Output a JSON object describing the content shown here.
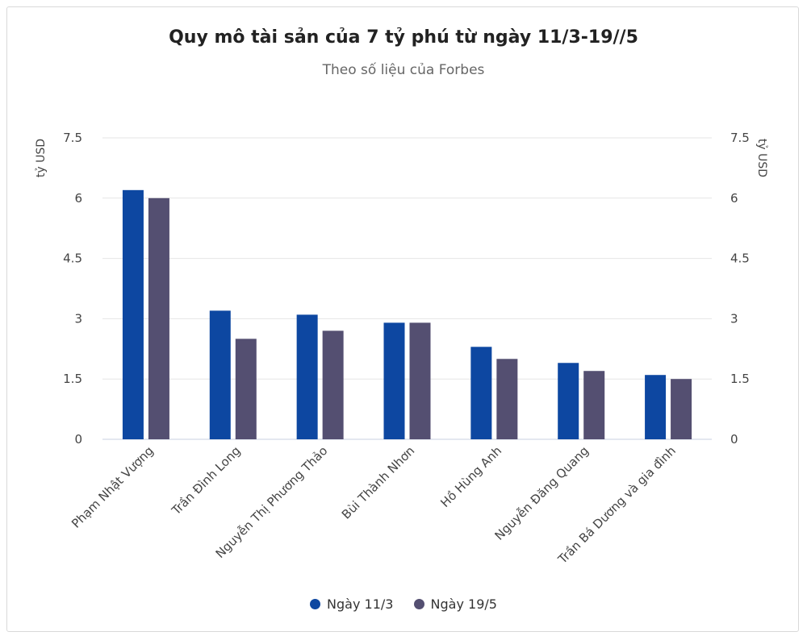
{
  "chart_data": {
    "type": "bar",
    "title": "Quy mô tài sản của 7 tỷ phú từ ngày 11/3-19//5",
    "subtitle": "Theo số liệu của Forbes",
    "ylabel": "tỷ USD",
    "ylabel_right": "tỷ USD",
    "ylim": [
      0,
      7.5
    ],
    "yticks": [
      "0",
      "1.5",
      "3",
      "4.5",
      "6",
      "7.5"
    ],
    "grid": true,
    "legend_position": "bottom",
    "categories": [
      "Phạm Nhật Vượng",
      "Trần Đình Long",
      "Nguyễn Thị Phương Thảo",
      "Bùi Thành Nhơn",
      "Hồ Hùng Anh",
      "Nguyễn Đăng Quang",
      "Trần Bá Dương và gia đình"
    ],
    "series": [
      {
        "name": "Ngày 11/3",
        "color": "#0d47a1",
        "values": [
          6.2,
          3.2,
          3.1,
          2.9,
          2.3,
          1.9,
          1.6
        ]
      },
      {
        "name": "Ngày 19/5",
        "color": "#544f71",
        "values": [
          6.0,
          2.5,
          2.7,
          2.9,
          2.0,
          1.7,
          1.5
        ]
      }
    ]
  }
}
